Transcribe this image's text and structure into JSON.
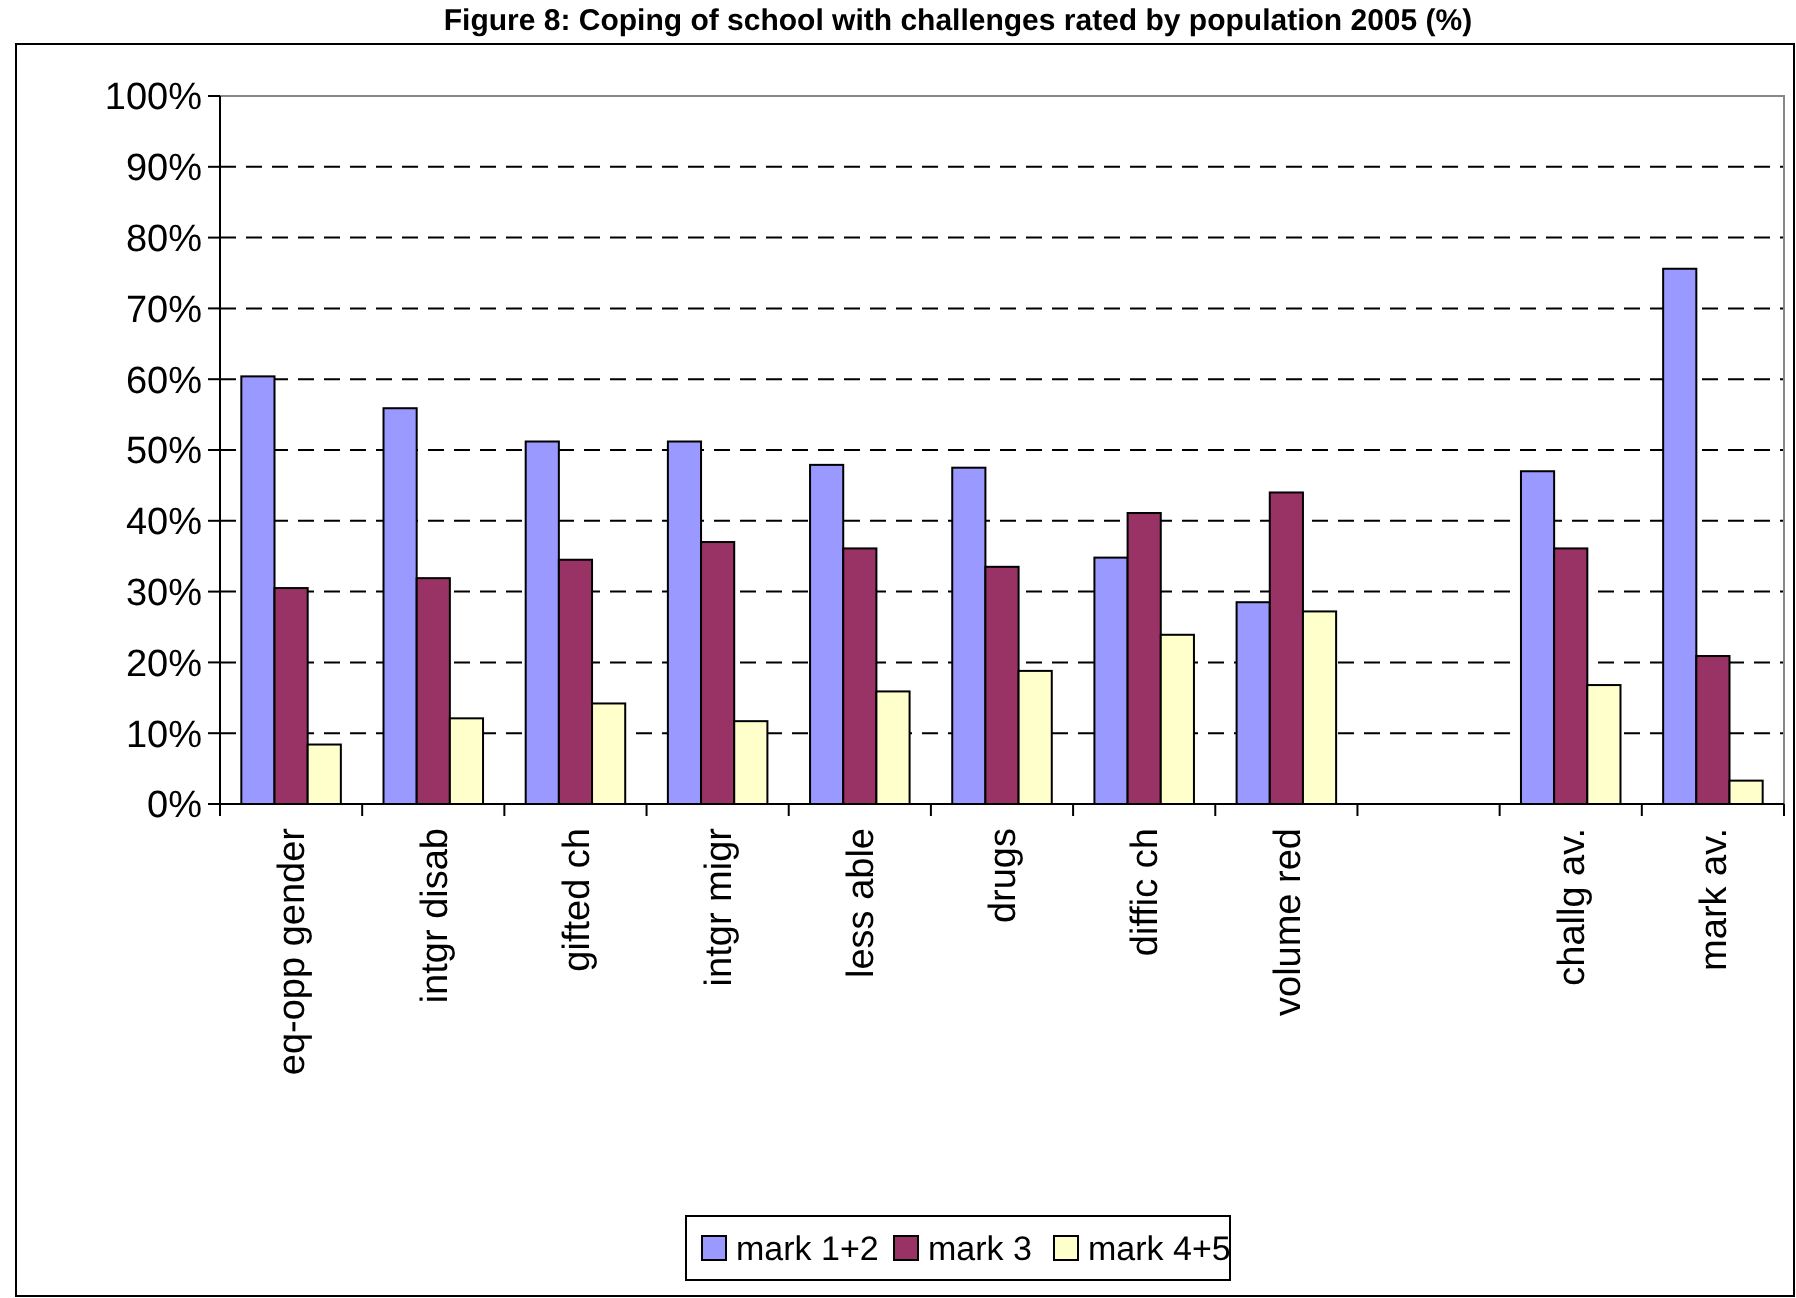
{
  "chart_data": {
    "type": "bar",
    "title": "Figure 8: Coping of school with challenges rated by population 2005 (%)",
    "categories": [
      "eq-opp gender",
      "intgr disab",
      "gifted ch",
      "intgr migr",
      "less able",
      "drugs",
      "diffic ch",
      "volume red",
      null,
      "challg av.",
      "mark av."
    ],
    "series": [
      {
        "name": "mark 1+2",
        "color": "#9999ff",
        "values": [
          60.4,
          55.9,
          51.2,
          51.2,
          47.9,
          47.5,
          34.8,
          28.5,
          null,
          47.0,
          75.6
        ]
      },
      {
        "name": "mark 3",
        "color": "#993366",
        "values": [
          30.5,
          31.9,
          34.5,
          37.0,
          36.1,
          33.5,
          41.1,
          44.0,
          null,
          36.1,
          20.9
        ]
      },
      {
        "name": "mark 4+5",
        "color": "#ffffcc",
        "values": [
          8.4,
          12.1,
          14.2,
          11.7,
          15.9,
          18.8,
          23.9,
          27.2,
          null,
          16.8,
          3.3
        ]
      }
    ],
    "ylim": [
      0,
      100
    ],
    "yticks": [
      {
        "value": 0,
        "label": "0%"
      },
      {
        "value": 10,
        "label": "10%"
      },
      {
        "value": 20,
        "label": "20%"
      },
      {
        "value": 30,
        "label": "30%"
      },
      {
        "value": 40,
        "label": "40%"
      },
      {
        "value": 50,
        "label": "50%"
      },
      {
        "value": 60,
        "label": "60%"
      },
      {
        "value": 70,
        "label": "70%"
      },
      {
        "value": 80,
        "label": "80%"
      },
      {
        "value": 90,
        "label": "90%"
      },
      {
        "value": 100,
        "label": "100%"
      }
    ],
    "grid": "y",
    "legend": "bottom"
  }
}
